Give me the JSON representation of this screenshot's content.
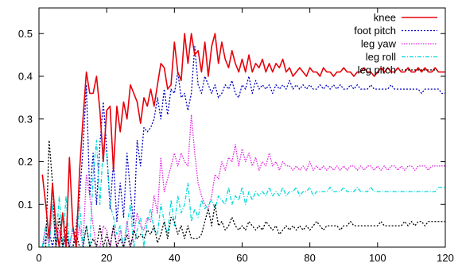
{
  "chart_data": {
    "type": "line",
    "xlim": [
      0,
      120
    ],
    "ylim": [
      0,
      0.56
    ],
    "xticks": [
      "0",
      "20",
      "40",
      "60",
      "80",
      "100",
      "120"
    ],
    "xtick_values": [
      0,
      20,
      40,
      60,
      80,
      100,
      120
    ],
    "yticks": [
      "0",
      "0.1",
      "0.2",
      "0.3",
      "0.4",
      "0.5"
    ],
    "ytick_values": [
      0,
      0.1,
      0.2,
      0.3,
      0.4,
      0.5
    ],
    "grid": false,
    "legend_position": "top-right",
    "x": [
      1,
      2,
      3,
      4,
      5,
      6,
      7,
      8,
      9,
      10,
      11,
      12,
      13,
      14,
      15,
      16,
      17,
      18,
      19,
      20,
      21,
      22,
      23,
      24,
      25,
      26,
      27,
      28,
      29,
      30,
      31,
      32,
      33,
      34,
      35,
      36,
      37,
      38,
      39,
      40,
      41,
      42,
      43,
      44,
      45,
      46,
      47,
      48,
      49,
      50,
      51,
      52,
      53,
      54,
      55,
      56,
      57,
      58,
      59,
      60,
      61,
      62,
      63,
      64,
      65,
      66,
      67,
      68,
      69,
      70,
      71,
      72,
      73,
      74,
      75,
      76,
      77,
      78,
      79,
      80,
      81,
      82,
      83,
      84,
      85,
      86,
      87,
      88,
      89,
      90,
      91,
      92,
      93,
      94,
      95,
      96,
      97,
      98,
      99,
      100,
      101,
      102,
      103,
      104,
      105,
      106,
      107,
      108,
      109,
      110,
      111,
      112,
      113,
      114,
      115,
      116,
      117,
      118,
      119,
      120
    ],
    "series": [
      {
        "name": "knee",
        "color": "#e8000a",
        "dash": "",
        "values": [
          0.17,
          0.1,
          0.02,
          0.15,
          0.05,
          0.0,
          0.08,
          0.0,
          0.21,
          0.05,
          0.0,
          0.18,
          0.3,
          0.41,
          0.36,
          0.36,
          0.4,
          0.32,
          0.2,
          0.32,
          0.33,
          0.18,
          0.33,
          0.27,
          0.34,
          0.3,
          0.38,
          0.36,
          0.34,
          0.29,
          0.35,
          0.33,
          0.37,
          0.33,
          0.38,
          0.43,
          0.42,
          0.37,
          0.38,
          0.48,
          0.41,
          0.39,
          0.5,
          0.43,
          0.5,
          0.45,
          0.46,
          0.41,
          0.48,
          0.4,
          0.47,
          0.5,
          0.43,
          0.48,
          0.44,
          0.42,
          0.46,
          0.43,
          0.41,
          0.44,
          0.41,
          0.45,
          0.41,
          0.43,
          0.42,
          0.44,
          0.41,
          0.43,
          0.41,
          0.43,
          0.42,
          0.44,
          0.41,
          0.42,
          0.4,
          0.41,
          0.42,
          0.41,
          0.4,
          0.42,
          0.41,
          0.41,
          0.4,
          0.42,
          0.41,
          0.41,
          0.4,
          0.41,
          0.41,
          0.42,
          0.41,
          0.41,
          0.4,
          0.41,
          0.41,
          0.42,
          0.41,
          0.41,
          0.4,
          0.41,
          0.42,
          0.41,
          0.42,
          0.41,
          0.41,
          0.42,
          0.41,
          0.41,
          0.42,
          0.41,
          0.41,
          0.42,
          0.41,
          0.42,
          0.41,
          0.41,
          0.42,
          0.41,
          0.41,
          0.41
        ]
      },
      {
        "name": "foot pitch",
        "color": "#0000c0",
        "dash": "2,2",
        "values": [
          0.0,
          0.02,
          0.04,
          0.0,
          0.05,
          0.0,
          0.0,
          0.05,
          0.0,
          0.0,
          0.05,
          0.12,
          0.23,
          0.38,
          0.12,
          0.22,
          0.1,
          0.24,
          0.34,
          0.23,
          0.09,
          0.2,
          0.06,
          0.15,
          0.07,
          0.22,
          0.13,
          0.05,
          0.25,
          0.19,
          0.28,
          0.27,
          0.28,
          0.3,
          0.35,
          0.3,
          0.37,
          0.31,
          0.37,
          0.36,
          0.41,
          0.35,
          0.36,
          0.32,
          0.36,
          0.47,
          0.38,
          0.36,
          0.4,
          0.38,
          0.36,
          0.38,
          0.35,
          0.36,
          0.38,
          0.37,
          0.39,
          0.36,
          0.35,
          0.38,
          0.37,
          0.4,
          0.36,
          0.39,
          0.37,
          0.38,
          0.37,
          0.38,
          0.36,
          0.38,
          0.37,
          0.38,
          0.37,
          0.39,
          0.37,
          0.38,
          0.37,
          0.38,
          0.37,
          0.38,
          0.37,
          0.37,
          0.38,
          0.37,
          0.38,
          0.37,
          0.38,
          0.37,
          0.38,
          0.37,
          0.37,
          0.38,
          0.37,
          0.38,
          0.37,
          0.37,
          0.37,
          0.38,
          0.37,
          0.37,
          0.37,
          0.37,
          0.37,
          0.38,
          0.37,
          0.37,
          0.37,
          0.37,
          0.37,
          0.37,
          0.37,
          0.37,
          0.36,
          0.37,
          0.37,
          0.37,
          0.37,
          0.37,
          0.36,
          0.36
        ]
      },
      {
        "name": "leg yaw",
        "color": "#e020e0",
        "dash": "1.5,1.5",
        "values": [
          0.0,
          0.05,
          0.0,
          0.1,
          0.0,
          0.04,
          0.0,
          0.02,
          0.0,
          0.04,
          0.0,
          0.05,
          0.0,
          0.17,
          0.12,
          0.05,
          0.0,
          0.0,
          0.05,
          0.04,
          0.0,
          0.05,
          0.0,
          0.04,
          0.0,
          0.06,
          0.0,
          0.03,
          0.08,
          0.05,
          0.04,
          0.07,
          0.06,
          0.12,
          0.08,
          0.21,
          0.13,
          0.16,
          0.19,
          0.22,
          0.19,
          0.22,
          0.2,
          0.19,
          0.31,
          0.22,
          0.15,
          0.12,
          0.1,
          0.09,
          0.12,
          0.17,
          0.16,
          0.2,
          0.18,
          0.21,
          0.2,
          0.24,
          0.19,
          0.23,
          0.2,
          0.22,
          0.19,
          0.21,
          0.18,
          0.2,
          0.19,
          0.22,
          0.19,
          0.2,
          0.18,
          0.2,
          0.19,
          0.19,
          0.18,
          0.19,
          0.18,
          0.19,
          0.18,
          0.2,
          0.18,
          0.19,
          0.18,
          0.19,
          0.18,
          0.19,
          0.18,
          0.19,
          0.18,
          0.19,
          0.18,
          0.19,
          0.19,
          0.18,
          0.19,
          0.18,
          0.19,
          0.19,
          0.18,
          0.19,
          0.18,
          0.19,
          0.18,
          0.19,
          0.19,
          0.18,
          0.19,
          0.18,
          0.19,
          0.19,
          0.18,
          0.19,
          0.19,
          0.19,
          0.18,
          0.19,
          0.19,
          0.19,
          0.19,
          0.19
        ]
      },
      {
        "name": "leg roll",
        "color": "#00d8d8",
        "dash": "5,2,1,2",
        "values": [
          0.0,
          0.05,
          0.0,
          0.1,
          0.0,
          0.12,
          0.0,
          0.12,
          0.0,
          0.05,
          0.0,
          0.1,
          0.0,
          0.05,
          0.0,
          0.17,
          0.25,
          0.1,
          0.24,
          0.22,
          0.1,
          0.07,
          0.03,
          0.05,
          0.0,
          0.05,
          0.1,
          0.0,
          0.04,
          0.07,
          0.0,
          0.06,
          0.09,
          0.04,
          0.03,
          0.1,
          0.06,
          0.03,
          0.11,
          0.05,
          0.12,
          0.08,
          0.1,
          0.15,
          0.06,
          0.09,
          0.07,
          0.11,
          0.09,
          0.1,
          0.11,
          0.09,
          0.12,
          0.11,
          0.1,
          0.14,
          0.1,
          0.12,
          0.11,
          0.14,
          0.1,
          0.13,
          0.11,
          0.13,
          0.12,
          0.13,
          0.12,
          0.14,
          0.12,
          0.13,
          0.12,
          0.14,
          0.12,
          0.13,
          0.13,
          0.14,
          0.12,
          0.13,
          0.13,
          0.14,
          0.12,
          0.13,
          0.13,
          0.13,
          0.13,
          0.14,
          0.13,
          0.13,
          0.13,
          0.14,
          0.13,
          0.13,
          0.13,
          0.14,
          0.13,
          0.13,
          0.13,
          0.14,
          0.13,
          0.13,
          0.13,
          0.13,
          0.13,
          0.13,
          0.13,
          0.13,
          0.13,
          0.13,
          0.13,
          0.13,
          0.13,
          0.13,
          0.13,
          0.13,
          0.13,
          0.13,
          0.13,
          0.14,
          0.14,
          0.14
        ]
      },
      {
        "name": "leg pitch",
        "color": "#000000",
        "dash": "2,2",
        "values": [
          0.0,
          0.0,
          0.25,
          0.15,
          0.0,
          0.07,
          0.0,
          0.03,
          0.0,
          0.0,
          0.03,
          0.0,
          0.0,
          0.05,
          0.0,
          0.02,
          0.0,
          0.05,
          0.0,
          0.03,
          0.0,
          0.05,
          0.0,
          0.02,
          0.0,
          0.03,
          0.0,
          0.04,
          0.02,
          0.03,
          0.02,
          0.04,
          0.03,
          0.05,
          0.01,
          0.03,
          0.06,
          0.02,
          0.07,
          0.06,
          0.03,
          0.05,
          0.02,
          0.05,
          0.02,
          0.02,
          0.02,
          0.03,
          0.06,
          0.09,
          0.05,
          0.1,
          0.05,
          0.06,
          0.04,
          0.05,
          0.07,
          0.05,
          0.04,
          0.05,
          0.04,
          0.06,
          0.05,
          0.04,
          0.05,
          0.04,
          0.06,
          0.05,
          0.04,
          0.05,
          0.03,
          0.04,
          0.05,
          0.04,
          0.05,
          0.04,
          0.05,
          0.04,
          0.05,
          0.04,
          0.05,
          0.06,
          0.05,
          0.04,
          0.05,
          0.05,
          0.05,
          0.05,
          0.04,
          0.05,
          0.05,
          0.06,
          0.05,
          0.05,
          0.05,
          0.05,
          0.05,
          0.05,
          0.05,
          0.05,
          0.06,
          0.05,
          0.05,
          0.05,
          0.05,
          0.05,
          0.05,
          0.06,
          0.05,
          0.06,
          0.05,
          0.06,
          0.06,
          0.05,
          0.06,
          0.06,
          0.06,
          0.06,
          0.06,
          0.06
        ]
      }
    ]
  }
}
